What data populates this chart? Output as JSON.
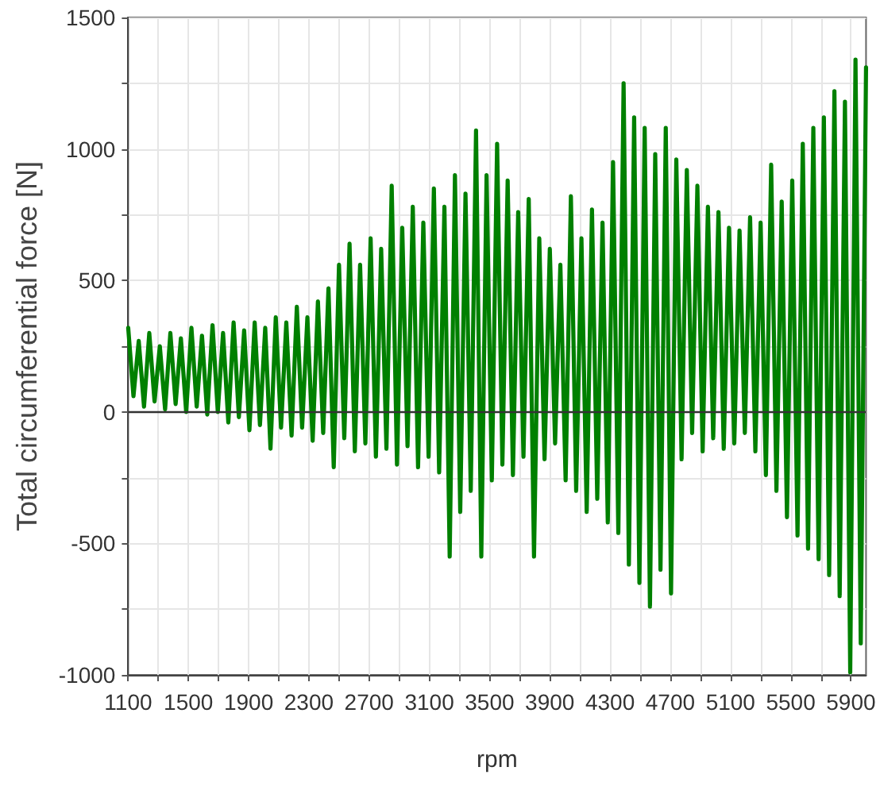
{
  "chart_data": {
    "type": "line",
    "xlabel": "rpm",
    "ylabel": "Total circumferential force [N]",
    "x": [
      1100,
      1135,
      1170,
      1205,
      1240,
      1275,
      1310,
      1345,
      1380,
      1415,
      1450,
      1485,
      1520,
      1555,
      1590,
      1625,
      1660,
      1695,
      1730,
      1765,
      1800,
      1835,
      1870,
      1905,
      1940,
      1975,
      2010,
      2045,
      2080,
      2115,
      2150,
      2185,
      2220,
      2255,
      2290,
      2325,
      2360,
      2395,
      2430,
      2465,
      2500,
      2535,
      2570,
      2605,
      2640,
      2675,
      2710,
      2745,
      2780,
      2815,
      2850,
      2885,
      2920,
      2955,
      2990,
      3025,
      3060,
      3095,
      3130,
      3165,
      3200,
      3235,
      3270,
      3305,
      3340,
      3375,
      3410,
      3445,
      3480,
      3515,
      3550,
      3585,
      3620,
      3655,
      3690,
      3725,
      3760,
      3795,
      3830,
      3865,
      3900,
      3935,
      3970,
      4005,
      4040,
      4075,
      4110,
      4145,
      4180,
      4215,
      4250,
      4285,
      4320,
      4355,
      4390,
      4425,
      4460,
      4495,
      4530,
      4565,
      4600,
      4635,
      4670,
      4705,
      4740,
      4775,
      4810,
      4845,
      4880,
      4915,
      4950,
      4985,
      5020,
      5055,
      5090,
      5125,
      5160,
      5195,
      5230,
      5265,
      5300,
      5335,
      5370,
      5405,
      5440,
      5475,
      5510,
      5545,
      5580,
      5615,
      5650,
      5685,
      5720,
      5755,
      5790,
      5825,
      5860,
      5895,
      5930,
      5965,
      6000
    ],
    "values": [
      320,
      60,
      270,
      20,
      300,
      40,
      250,
      10,
      300,
      30,
      280,
      0,
      320,
      20,
      290,
      -10,
      330,
      0,
      300,
      -40,
      340,
      -20,
      310,
      -70,
      340,
      -50,
      320,
      -140,
      360,
      -60,
      340,
      -90,
      400,
      -60,
      360,
      -110,
      420,
      -80,
      470,
      -210,
      560,
      -100,
      640,
      -150,
      560,
      -120,
      660,
      -170,
      620,
      -140,
      860,
      -200,
      700,
      -130,
      780,
      -210,
      720,
      -170,
      850,
      -230,
      780,
      -550,
      900,
      -380,
      830,
      -300,
      1070,
      -550,
      900,
      -260,
      1020,
      -200,
      880,
      -240,
      760,
      -170,
      810,
      -550,
      660,
      -180,
      620,
      -120,
      560,
      -260,
      820,
      -300,
      660,
      -380,
      770,
      -330,
      720,
      -420,
      950,
      -460,
      1250,
      -580,
      1120,
      -650,
      1080,
      -740,
      980,
      -600,
      1080,
      -690,
      960,
      -180,
      920,
      -80,
      860,
      -150,
      780,
      -100,
      760,
      -140,
      700,
      -120,
      690,
      -80,
      740,
      -150,
      720,
      -240,
      940,
      -300,
      800,
      -400,
      880,
      -470,
      1020,
      -520,
      1080,
      -560,
      1120,
      -620,
      1220,
      -700,
      1180,
      -990,
      1340,
      -880,
      1310
    ],
    "color": "#008000",
    "marker": "none",
    "line_style": "solid",
    "xlim": [
      1100,
      6000
    ],
    "xticks": [
      1100,
      {
        "value": 1300,
        "label": null
      },
      1500,
      {
        "value": 1700,
        "label": null
      },
      1900,
      {
        "value": 2100,
        "label": null
      },
      2300,
      {
        "value": 2500,
        "label": null
      },
      2700,
      {
        "value": 2900,
        "label": null
      },
      3100,
      {
        "value": 3300,
        "label": null
      },
      3500,
      {
        "value": 3700,
        "label": null
      },
      3900,
      {
        "value": 4100,
        "label": null
      },
      4300,
      {
        "value": 4500,
        "label": null
      },
      4700,
      {
        "value": 4900,
        "label": null
      },
      5100,
      {
        "value": 5300,
        "label": null
      },
      5500,
      {
        "value": 5700,
        "label": null
      },
      5900
    ],
    "ylim": [
      -1000,
      1500
    ],
    "yticks": [
      -1000,
      {
        "value": -750,
        "label": null
      },
      -500,
      {
        "value": -250,
        "label": null
      },
      0,
      {
        "value": 250,
        "label": null
      },
      500,
      {
        "value": 750,
        "label": null
      },
      1000,
      {
        "value": 1250,
        "label": null
      },
      1500
    ],
    "grid": true,
    "ref_lines": [
      {
        "axis": "y",
        "value": 0,
        "color": "#333333"
      }
    ]
  }
}
